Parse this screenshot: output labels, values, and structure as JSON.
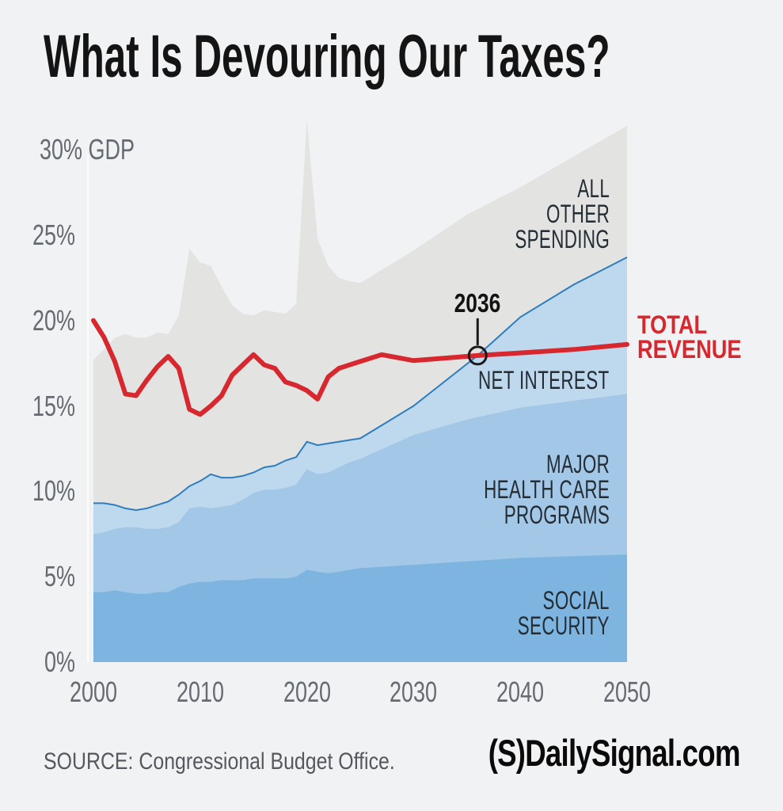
{
  "page": {
    "title": "What Is Devouring Our Taxes?",
    "source": "SOURCE: Congressional Budget Office.",
    "brand": {
      "mark": "(S)",
      "name": "DailySignal.com"
    }
  },
  "colors": {
    "background": "#f1f2f4",
    "all_other_spending": "#e3e3e2",
    "net_interest": "#bed8ee",
    "major_health_care": "#a2c7e7",
    "social_security": "#7eb5e0",
    "net_interest_top_line": "#2e7dbf",
    "revenue_line": "#d7282f",
    "annotation": "#1a1a1a"
  },
  "chart_data": {
    "type": "area",
    "title": "What Is Devouring Our Taxes?",
    "unit": "% of GDP",
    "stacked": true,
    "grid": false,
    "xlim": [
      2000,
      2050
    ],
    "ylim": [
      0,
      30
    ],
    "x_ticks": [
      2000,
      2010,
      2020,
      2030,
      2040,
      2050
    ],
    "y_ticks": [
      {
        "label": "30% GDP",
        "value": 30
      },
      {
        "label": "25%",
        "value": 25
      },
      {
        "label": "20%",
        "value": 20
      },
      {
        "label": "15%",
        "value": 15
      },
      {
        "label": "10%",
        "value": 10
      },
      {
        "label": "5%",
        "value": 5
      },
      {
        "label": "0%",
        "value": 0
      }
    ],
    "bands_note": "points are cumulative stacked tops in % of GDP, drawn back-to-front",
    "bands": [
      {
        "name": "all-other-spending",
        "label": "ALL\nOTHER\nSPENDING",
        "color": "#e3e3e2",
        "points": [
          [
            2000,
            17.7
          ],
          [
            2001,
            18.3
          ],
          [
            2002,
            19.0
          ],
          [
            2003,
            19.2
          ],
          [
            2004,
            19.0
          ],
          [
            2005,
            19.0
          ],
          [
            2006,
            19.3
          ],
          [
            2007,
            19.2
          ],
          [
            2008,
            20.3
          ],
          [
            2009,
            24.2
          ],
          [
            2010,
            23.4
          ],
          [
            2011,
            23.2
          ],
          [
            2012,
            22.0
          ],
          [
            2013,
            20.9
          ],
          [
            2014,
            20.4
          ],
          [
            2015,
            20.3
          ],
          [
            2016,
            20.6
          ],
          [
            2017,
            20.5
          ],
          [
            2018,
            20.4
          ],
          [
            2019,
            21.0
          ],
          [
            2020,
            31.8
          ],
          [
            2021,
            24.8
          ],
          [
            2022,
            23.2
          ],
          [
            2023,
            22.5
          ],
          [
            2024,
            22.3
          ],
          [
            2025,
            22.2
          ],
          [
            2030,
            24.1
          ],
          [
            2035,
            26.2
          ],
          [
            2040,
            27.8
          ],
          [
            2045,
            29.6
          ],
          [
            2050,
            31.4
          ]
        ]
      },
      {
        "name": "net-interest",
        "label": "NET INTEREST",
        "color": "#bed8ee",
        "line_color": "#2e7dbf",
        "points": [
          [
            2000,
            9.3
          ],
          [
            2001,
            9.3
          ],
          [
            2002,
            9.2
          ],
          [
            2003,
            9.0
          ],
          [
            2004,
            8.9
          ],
          [
            2005,
            9.0
          ],
          [
            2006,
            9.2
          ],
          [
            2007,
            9.4
          ],
          [
            2008,
            9.8
          ],
          [
            2009,
            10.3
          ],
          [
            2010,
            10.6
          ],
          [
            2011,
            11.0
          ],
          [
            2012,
            10.8
          ],
          [
            2013,
            10.8
          ],
          [
            2014,
            10.9
          ],
          [
            2015,
            11.1
          ],
          [
            2016,
            11.4
          ],
          [
            2017,
            11.5
          ],
          [
            2018,
            11.8
          ],
          [
            2019,
            12.0
          ],
          [
            2020,
            12.9
          ],
          [
            2021,
            12.7
          ],
          [
            2022,
            12.8
          ],
          [
            2023,
            12.9
          ],
          [
            2024,
            13.0
          ],
          [
            2025,
            13.1
          ],
          [
            2030,
            15.0
          ],
          [
            2036,
            17.95
          ],
          [
            2040,
            20.2
          ],
          [
            2045,
            22.1
          ],
          [
            2050,
            23.7
          ]
        ]
      },
      {
        "name": "major-health-care-programs",
        "label": "MAJOR\nHEALTH CARE\nPROGRAMS",
        "color": "#a2c7e7",
        "points": [
          [
            2000,
            7.5
          ],
          [
            2001,
            7.6
          ],
          [
            2002,
            7.8
          ],
          [
            2003,
            7.9
          ],
          [
            2004,
            7.9
          ],
          [
            2005,
            7.8
          ],
          [
            2006,
            7.8
          ],
          [
            2007,
            7.9
          ],
          [
            2008,
            8.2
          ],
          [
            2009,
            9.0
          ],
          [
            2010,
            9.1
          ],
          [
            2011,
            9.0
          ],
          [
            2012,
            9.1
          ],
          [
            2013,
            9.2
          ],
          [
            2014,
            9.5
          ],
          [
            2015,
            9.9
          ],
          [
            2016,
            10.1
          ],
          [
            2017,
            10.1
          ],
          [
            2018,
            10.2
          ],
          [
            2019,
            10.4
          ],
          [
            2020,
            11.3
          ],
          [
            2021,
            11.0
          ],
          [
            2022,
            11.1
          ],
          [
            2023,
            11.4
          ],
          [
            2024,
            11.7
          ],
          [
            2025,
            11.9
          ],
          [
            2030,
            13.3
          ],
          [
            2035,
            14.2
          ],
          [
            2040,
            14.9
          ],
          [
            2045,
            15.3
          ],
          [
            2050,
            15.7
          ]
        ]
      },
      {
        "name": "social-security",
        "label": "SOCIAL\nSECURITY",
        "color": "#7eb5e0",
        "points": [
          [
            2000,
            4.1
          ],
          [
            2001,
            4.1
          ],
          [
            2002,
            4.2
          ],
          [
            2003,
            4.1
          ],
          [
            2004,
            4.0
          ],
          [
            2005,
            4.0
          ],
          [
            2006,
            4.1
          ],
          [
            2007,
            4.1
          ],
          [
            2008,
            4.4
          ],
          [
            2009,
            4.6
          ],
          [
            2010,
            4.7
          ],
          [
            2011,
            4.7
          ],
          [
            2012,
            4.8
          ],
          [
            2013,
            4.8
          ],
          [
            2014,
            4.8
          ],
          [
            2015,
            4.9
          ],
          [
            2016,
            4.9
          ],
          [
            2017,
            4.9
          ],
          [
            2018,
            4.9
          ],
          [
            2019,
            5.0
          ],
          [
            2020,
            5.4
          ],
          [
            2021,
            5.3
          ],
          [
            2022,
            5.2
          ],
          [
            2023,
            5.3
          ],
          [
            2024,
            5.4
          ],
          [
            2025,
            5.5
          ],
          [
            2030,
            5.7
          ],
          [
            2035,
            5.9
          ],
          [
            2040,
            6.1
          ],
          [
            2045,
            6.2
          ],
          [
            2050,
            6.3
          ]
        ]
      }
    ],
    "line": {
      "name": "total-revenue",
      "label": "TOTAL\nREVENUE",
      "color": "#d7282f",
      "points": [
        [
          2000,
          20.0
        ],
        [
          2001,
          19.0
        ],
        [
          2002,
          17.6
        ],
        [
          2003,
          15.7
        ],
        [
          2004,
          15.6
        ],
        [
          2005,
          16.5
        ],
        [
          2006,
          17.3
        ],
        [
          2007,
          17.9
        ],
        [
          2008,
          17.2
        ],
        [
          2009,
          14.8
        ],
        [
          2010,
          14.5
        ],
        [
          2011,
          15.0
        ],
        [
          2012,
          15.6
        ],
        [
          2013,
          16.8
        ],
        [
          2014,
          17.4
        ],
        [
          2015,
          18.0
        ],
        [
          2016,
          17.4
        ],
        [
          2017,
          17.2
        ],
        [
          2018,
          16.4
        ],
        [
          2019,
          16.2
        ],
        [
          2020,
          15.9
        ],
        [
          2021,
          15.4
        ],
        [
          2022,
          16.7
        ],
        [
          2023,
          17.2
        ],
        [
          2024,
          17.4
        ],
        [
          2025,
          17.6
        ],
        [
          2027,
          18.0
        ],
        [
          2030,
          17.65
        ],
        [
          2033,
          17.8
        ],
        [
          2036,
          17.95
        ],
        [
          2040,
          18.1
        ],
        [
          2045,
          18.3
        ],
        [
          2050,
          18.6
        ]
      ]
    },
    "annotation": {
      "label": "2036",
      "year": 2036,
      "value": 17.95
    }
  }
}
